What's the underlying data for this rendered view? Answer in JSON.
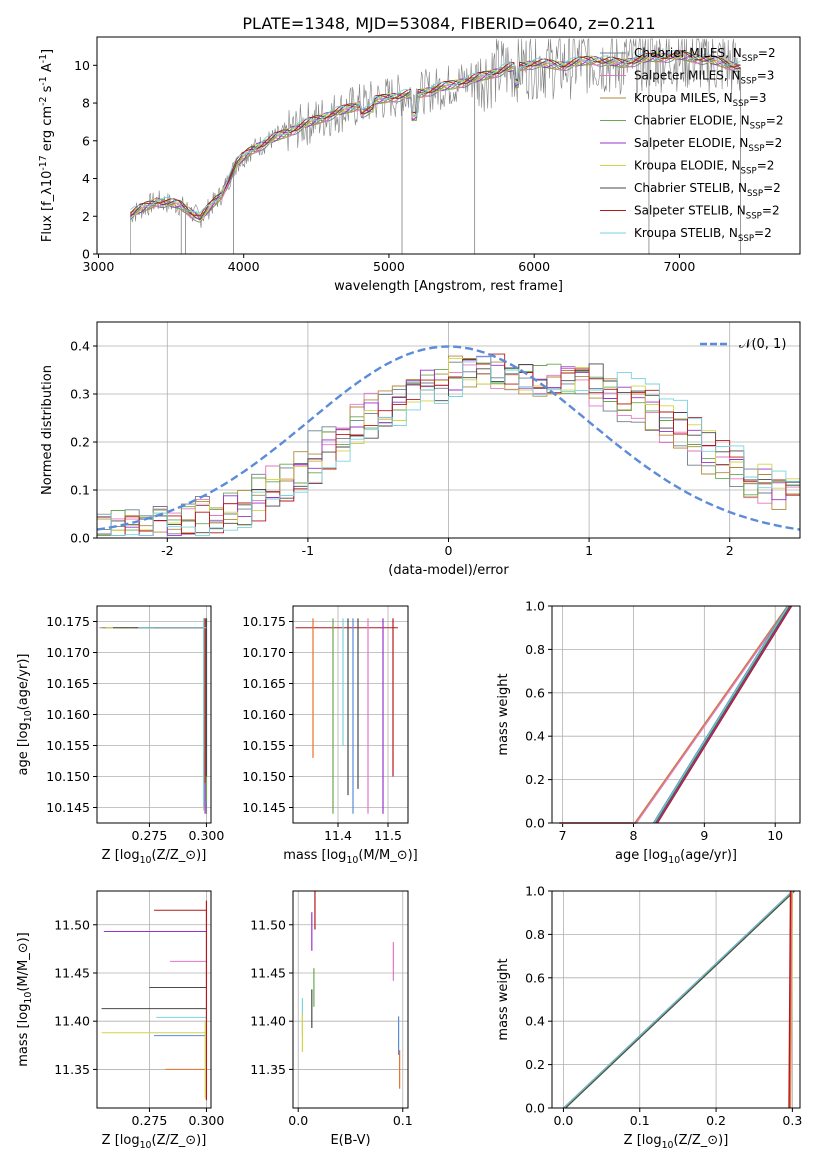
{
  "title": "PLATE=1348, MJD=53084, FIBERID=0640, z=0.211",
  "colors": {
    "spectrum": "#808080",
    "normal_curve": "#5b8bd9",
    "models": [
      "#6f7f8f",
      "#e377c2",
      "#b08a3c",
      "#6aa84f",
      "#9933cc",
      "#d4d44a",
      "#4a4a4a",
      "#b31b1b",
      "#7ad3e0"
    ],
    "z_models": [
      "#e8702a",
      "#5b8bd9",
      "#6aa84f",
      "#9933cc",
      "#e377c2",
      "#4a4a4a",
      "#7ad3e0",
      "#b31b1b",
      "#d4d44a"
    ]
  },
  "chart_data": [
    {
      "type": "line",
      "id": "spectrum",
      "xlabel": "wavelength [Angstrom, rest frame]",
      "ylabel": "Flux [f_λ10^{-17} erg cm^{-2} s^{-1} A^{-1}]",
      "xlim": [
        2990,
        7830
      ],
      "ylim": [
        0,
        11.5
      ],
      "xticks": [
        3000,
        4000,
        5000,
        6000,
        7000
      ],
      "yticks": [
        0,
        2,
        4,
        6,
        8,
        10
      ],
      "grid": false,
      "legend": "upper-right",
      "series": [
        {
          "name": "Chabrier MILES, N_{SSP}=2"
        },
        {
          "name": "Salpeter MILES, N_{SSP}=3"
        },
        {
          "name": "Kroupa MILES, N_{SSP}=3"
        },
        {
          "name": "Chabrier ELODIE, N_{SSP}=2"
        },
        {
          "name": "Salpeter ELODIE, N_{SSP}=2"
        },
        {
          "name": "Kroupa ELODIE, N_{SSP}=2"
        },
        {
          "name": "Chabrier STELIB, N_{SSP}=2"
        },
        {
          "name": "Salpeter STELIB, N_{SSP}=2"
        },
        {
          "name": "Kroupa STELIB, N_{SSP}=2"
        }
      ],
      "continuum": {
        "x": [
          3220,
          3400,
          3560,
          3700,
          3850,
          3950,
          4050,
          4200,
          4400,
          4600,
          4800,
          5000,
          5200,
          5400,
          5600,
          5800,
          6000,
          6200,
          6400,
          6600,
          6800,
          7000,
          7200,
          7420
        ],
        "y": [
          2.1,
          2.8,
          2.6,
          1.9,
          3.2,
          4.8,
          5.5,
          6.1,
          6.8,
          7.4,
          7.9,
          8.3,
          8.5,
          8.9,
          9.3,
          9.8,
          10.1,
          10.0,
          10.3,
          10.1,
          10.4,
          10.5,
          10.3,
          9.9
        ]
      }
    },
    {
      "type": "line",
      "id": "residual_hist",
      "xlabel": "(data-model)/error",
      "ylabel": "Normed distribution",
      "xlim": [
        -2.5,
        2.5
      ],
      "ylim": [
        0,
        0.45
      ],
      "xticks": [
        -2,
        -1,
        0,
        1,
        2
      ],
      "yticks": [
        0.0,
        0.1,
        0.2,
        0.3,
        0.4
      ],
      "grid": true,
      "legend": "upper-right",
      "normal_label": "𝒩(0, 1)",
      "hist_envelope": {
        "x": [
          -2.5,
          -2.0,
          -1.5,
          -1.0,
          -0.5,
          0.0,
          0.25,
          0.5,
          1.0,
          1.5,
          2.0,
          2.5
        ],
        "y": [
          0.02,
          0.03,
          0.06,
          0.15,
          0.26,
          0.34,
          0.35,
          0.33,
          0.33,
          0.26,
          0.15,
          0.08
        ]
      }
    },
    {
      "type": "scatter",
      "id": "age_vs_z",
      "xlabel": "Z [log_{10}(Z/Z_⊙)]",
      "ylabel": "age  [log_{10}(age/yr)]",
      "xlim": [
        0.252,
        0.302
      ],
      "ylim": [
        10.1425,
        10.1775
      ],
      "xticks": [
        0.275,
        0.3
      ],
      "yticks": [
        10.145,
        10.15,
        10.155,
        10.16,
        10.165,
        10.17,
        10.175
      ],
      "grid": true,
      "best_fit": {
        "z": 0.3,
        "age": 10.174
      }
    },
    {
      "type": "scatter",
      "id": "age_vs_mass",
      "xlabel": "mass [log_{10}(M/M_⊙)]",
      "ylabel": "",
      "xlim": [
        11.31,
        11.54
      ],
      "ylim": [
        10.1425,
        10.1775
      ],
      "xticks": [
        11.4,
        11.5
      ],
      "yticks": [
        10.145,
        10.15,
        10.155,
        10.16,
        10.165,
        10.17,
        10.175
      ],
      "grid": true,
      "masses": [
        11.35,
        11.39,
        11.41,
        11.42,
        11.44,
        11.46,
        11.49,
        11.51,
        11.43
      ],
      "ages": [
        10.153,
        10.144,
        10.155,
        10.147,
        10.148,
        10.144,
        10.144,
        10.15,
        10.144
      ]
    },
    {
      "type": "line",
      "id": "mass_weight_vs_age",
      "xlabel": "age  [log_{10}(age/yr)]",
      "ylabel": "mass weight",
      "xlim": [
        6.85,
        10.35
      ],
      "ylim": [
        0,
        1
      ],
      "xticks": [
        7,
        8,
        9,
        10
      ],
      "yticks": [
        0.0,
        0.2,
        0.4,
        0.6,
        0.8,
        1.0
      ],
      "grid": true,
      "series": [
        {
          "x": [
            6.95,
            8.02,
            10.174
          ],
          "y": [
            0.0,
            0.0,
            1.0
          ]
        },
        {
          "x": [
            8.28,
            10.174
          ],
          "y": [
            0.0,
            1.0
          ]
        }
      ]
    },
    {
      "type": "scatter",
      "id": "mass_vs_z",
      "xlabel": "Z [log_{10}(Z/Z_⊙)]",
      "ylabel": "mass [log_{10}(M/M_⊙)]",
      "xlim": [
        0.252,
        0.302
      ],
      "ylim": [
        11.31,
        11.535
      ],
      "xticks": [
        0.275,
        0.3
      ],
      "yticks": [
        11.35,
        11.4,
        11.45,
        11.5
      ],
      "grid": true,
      "masses": [
        11.35,
        11.385,
        11.404,
        11.413,
        11.435,
        11.462,
        11.493,
        11.515,
        11.388
      ]
    },
    {
      "type": "scatter",
      "id": "mass_vs_ebv",
      "xlabel": "E(B-V)",
      "ylabel": "",
      "xlim": [
        -0.005,
        0.105
      ],
      "ylim": [
        11.31,
        11.535
      ],
      "xticks": [
        0.0,
        0.1
      ],
      "yticks": [
        11.35,
        11.4,
        11.45,
        11.5
      ],
      "grid": true,
      "ebv": [
        0.097,
        0.096,
        0.004,
        0.013,
        0.015,
        0.091,
        0.013,
        0.016,
        0.004
      ],
      "masses": [
        11.35,
        11.385,
        11.404,
        11.413,
        11.435,
        11.462,
        11.493,
        11.515,
        11.388
      ]
    },
    {
      "type": "line",
      "id": "mass_weight_vs_z",
      "xlabel": "Z [log_{10}(Z/Z_⊙)]",
      "ylabel": "mass weight",
      "xlim": [
        -0.015,
        0.31
      ],
      "ylim": [
        0,
        1
      ],
      "xticks": [
        0.0,
        0.1,
        0.2,
        0.3
      ],
      "yticks": [
        0.0,
        0.2,
        0.4,
        0.6,
        0.8,
        1.0
      ],
      "grid": true,
      "series": [
        {
          "x": [
            0.0,
            0.3
          ],
          "y": [
            0.0,
            1.0
          ]
        },
        {
          "x": [
            0.298,
            0.3
          ],
          "y": [
            0.0,
            1.0
          ]
        }
      ]
    }
  ]
}
